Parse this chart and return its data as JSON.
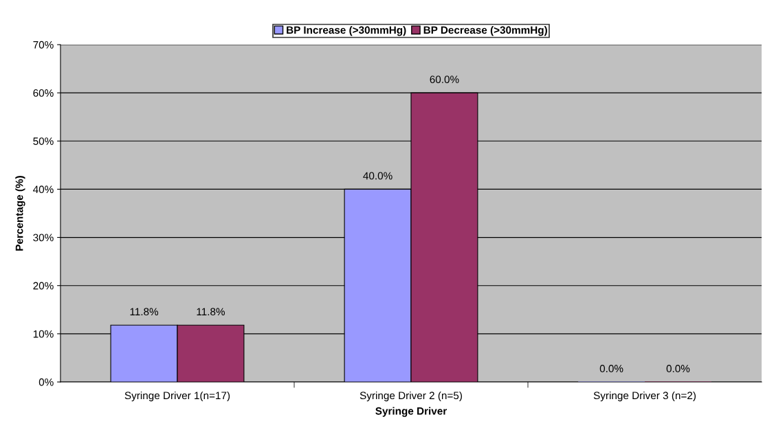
{
  "chart_data": {
    "type": "bar",
    "xlabel": "Syringe Driver",
    "ylabel": "Percentage (%)",
    "categories": [
      "Syringe Driver 1(n=17)",
      "Syringe Driver 2 (n=5)",
      "Syringe Driver 3 (n=2)"
    ],
    "series": [
      {
        "name": "BP Increase (>30mmHg)",
        "color": "#9999ff",
        "values": [
          11.8,
          40.0,
          0.0
        ],
        "value_labels": [
          "11.8%",
          "40.0%",
          "0.0%"
        ]
      },
      {
        "name": "BP Decrease (>30mmHg)",
        "color": "#993366",
        "values": [
          11.8,
          60.0,
          0.0
        ],
        "value_labels": [
          "11.8%",
          "60.0%",
          "0.0%"
        ]
      }
    ],
    "ylim": [
      0,
      70
    ],
    "yticks": [
      {
        "value": 0,
        "label": "0%"
      },
      {
        "value": 10,
        "label": "10%"
      },
      {
        "value": 20,
        "label": "20%"
      },
      {
        "value": 30,
        "label": "30%"
      },
      {
        "value": 40,
        "label": "40%"
      },
      {
        "value": 50,
        "label": "50%"
      },
      {
        "value": 60,
        "label": "60%"
      },
      {
        "value": 70,
        "label": "70%"
      }
    ],
    "grid": "y",
    "legend": "top"
  }
}
